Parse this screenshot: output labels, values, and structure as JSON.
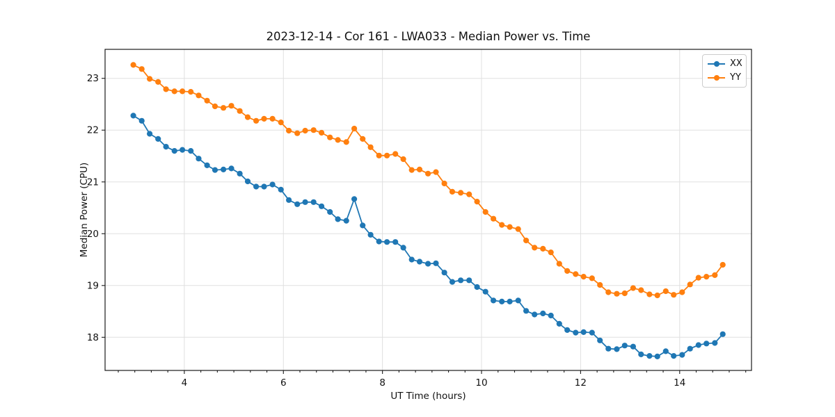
{
  "chart_data": {
    "type": "line",
    "title": "2023-12-14 - Cor 161 - LWA033 - Median Power vs. Time",
    "xlabel": "UT Time (hours)",
    "ylabel": "Median Power (CPU)",
    "xlim": [
      2.4,
      15.45
    ],
    "ylim": [
      17.36,
      23.56
    ],
    "xticks": [
      4,
      6,
      8,
      10,
      12,
      14
    ],
    "yticks": [
      18,
      19,
      20,
      21,
      22,
      23
    ],
    "x_minor_step": 0.33333,
    "grid": true,
    "legend_position": "upper right",
    "grid_color": "#e0e0e0",
    "spine_color": "#1a1a1a",
    "background": "#ffffff",
    "x": [
      2.97,
      3.14,
      3.3,
      3.47,
      3.63,
      3.8,
      3.96,
      4.13,
      4.29,
      4.46,
      4.62,
      4.79,
      4.95,
      5.12,
      5.28,
      5.45,
      5.61,
      5.78,
      5.95,
      6.11,
      6.28,
      6.44,
      6.61,
      6.77,
      6.94,
      7.1,
      7.27,
      7.43,
      7.6,
      7.76,
      7.93,
      8.09,
      8.26,
      8.42,
      8.59,
      8.75,
      8.92,
      9.08,
      9.25,
      9.41,
      9.58,
      9.75,
      9.91,
      10.08,
      10.24,
      10.41,
      10.57,
      10.74,
      10.9,
      11.07,
      11.24,
      11.4,
      11.57,
      11.73,
      11.9,
      12.06,
      12.23,
      12.39,
      12.56,
      12.73,
      12.89,
      13.06,
      13.22,
      13.39,
      13.55,
      13.72,
      13.88,
      14.05,
      14.21,
      14.38,
      14.54,
      14.71,
      14.87
    ],
    "series": [
      {
        "name": "XX",
        "color": "#1f77b4",
        "values": [
          22.28,
          22.18,
          21.93,
          21.83,
          21.68,
          21.6,
          21.62,
          21.6,
          21.45,
          21.32,
          21.23,
          21.24,
          21.26,
          21.16,
          21.01,
          20.91,
          20.91,
          20.95,
          20.85,
          20.65,
          20.57,
          20.61,
          20.61,
          20.53,
          20.42,
          20.28,
          20.25,
          20.67,
          20.16,
          19.98,
          19.85,
          19.84,
          19.84,
          19.73,
          19.5,
          19.46,
          19.42,
          19.43,
          19.25,
          19.07,
          19.1,
          19.1,
          18.97,
          18.88,
          18.71,
          18.69,
          18.69,
          18.71,
          18.51,
          18.44,
          18.46,
          18.42,
          18.26,
          18.14,
          18.09,
          18.1,
          18.09,
          17.94,
          17.78,
          17.77,
          17.84,
          17.82,
          17.67,
          17.64,
          17.63,
          17.73,
          17.64,
          17.66,
          17.78,
          17.85,
          17.88,
          17.89,
          18.06
        ]
      },
      {
        "name": "YY",
        "color": "#ff7f0e",
        "values": [
          23.26,
          23.18,
          22.99,
          22.93,
          22.79,
          22.75,
          22.75,
          22.74,
          22.67,
          22.57,
          22.46,
          22.43,
          22.47,
          22.37,
          22.25,
          22.18,
          22.22,
          22.22,
          22.15,
          21.99,
          21.94,
          21.99,
          22.0,
          21.95,
          21.86,
          21.81,
          21.77,
          22.03,
          21.83,
          21.67,
          21.51,
          21.51,
          21.54,
          21.44,
          21.23,
          21.24,
          21.16,
          21.19,
          20.97,
          20.81,
          20.79,
          20.76,
          20.62,
          20.42,
          20.29,
          20.17,
          20.13,
          20.09,
          19.87,
          19.73,
          19.71,
          19.64,
          19.42,
          19.28,
          19.22,
          19.17,
          19.14,
          19.01,
          18.87,
          18.84,
          18.85,
          18.95,
          18.91,
          18.83,
          18.81,
          18.89,
          18.82,
          18.87,
          19.02,
          19.15,
          19.17,
          19.2,
          19.4
        ]
      }
    ]
  }
}
